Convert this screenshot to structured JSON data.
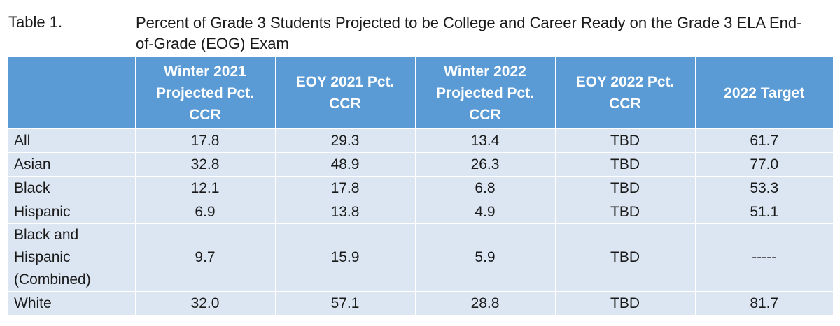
{
  "caption": {
    "label": "Table 1.",
    "title": "Percent of Grade 3 Students Projected to be College and Career Ready on the Grade 3 ELA End-of-Grade (EOG) Exam"
  },
  "table": {
    "headers": [
      "",
      "Winter 2021 Projected Pct. CCR",
      "EOY 2021 Pct. CCR",
      "Winter 2022 Projected Pct. CCR",
      "EOY 2022 Pct. CCR",
      "2022 Target"
    ],
    "rows": [
      {
        "group": "All",
        "cells": [
          "17.8",
          "29.3",
          "13.4",
          "TBD",
          "61.7"
        ]
      },
      {
        "group": "Asian",
        "cells": [
          "32.8",
          "48.9",
          "26.3",
          "TBD",
          "77.0"
        ]
      },
      {
        "group": "Black",
        "cells": [
          "12.1",
          "17.8",
          "6.8",
          "TBD",
          "53.3"
        ]
      },
      {
        "group": "Hispanic",
        "cells": [
          "6.9",
          "13.8",
          "4.9",
          "TBD",
          "51.1"
        ]
      },
      {
        "group": "Black and Hispanic (Combined)",
        "cells": [
          "9.7",
          "15.9",
          "5.9",
          "TBD",
          "-----"
        ]
      },
      {
        "group": "White",
        "cells": [
          "32.0",
          "57.1",
          "28.8",
          "TBD",
          "81.7"
        ]
      }
    ]
  },
  "colors": {
    "header_bg": "#5b9bd5",
    "header_text": "#ffffff",
    "row_bg": "#dce6f2"
  }
}
